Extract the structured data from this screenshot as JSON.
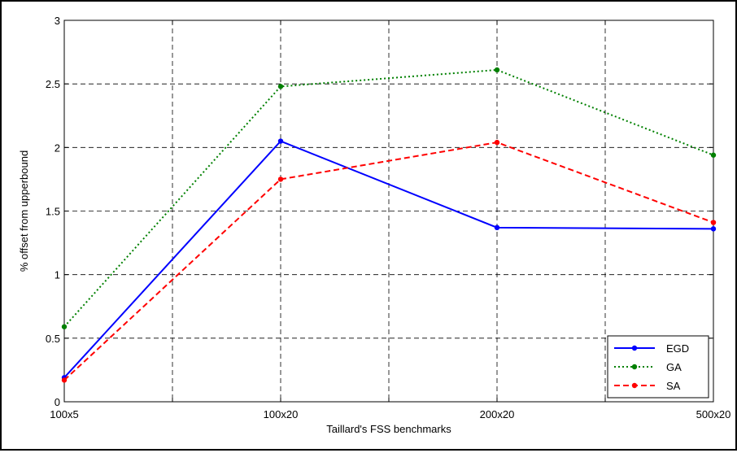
{
  "chart_data": {
    "type": "line",
    "title": "",
    "xlabel": "Taillard's FSS benchmarks",
    "ylabel": "% offset from upperbound",
    "categories": [
      "100x5",
      "100x20",
      "200x20",
      "500x20"
    ],
    "ylim": [
      0,
      3
    ],
    "yticks": [
      "0",
      "0.5",
      "1",
      "1.5",
      "2",
      "2.5",
      "3"
    ],
    "grid": true,
    "legend_position": "bottom-right",
    "series": [
      {
        "name": "EGD",
        "values": [
          0.19,
          2.05,
          1.37,
          1.36
        ],
        "color": "#0000ff",
        "style": "solid"
      },
      {
        "name": "GA",
        "values": [
          0.59,
          2.48,
          2.61,
          1.94
        ],
        "color": "#008000",
        "style": "dotted"
      },
      {
        "name": "SA",
        "values": [
          0.17,
          1.75,
          2.04,
          1.41
        ],
        "color": "#ff0000",
        "style": "dashed"
      }
    ]
  }
}
